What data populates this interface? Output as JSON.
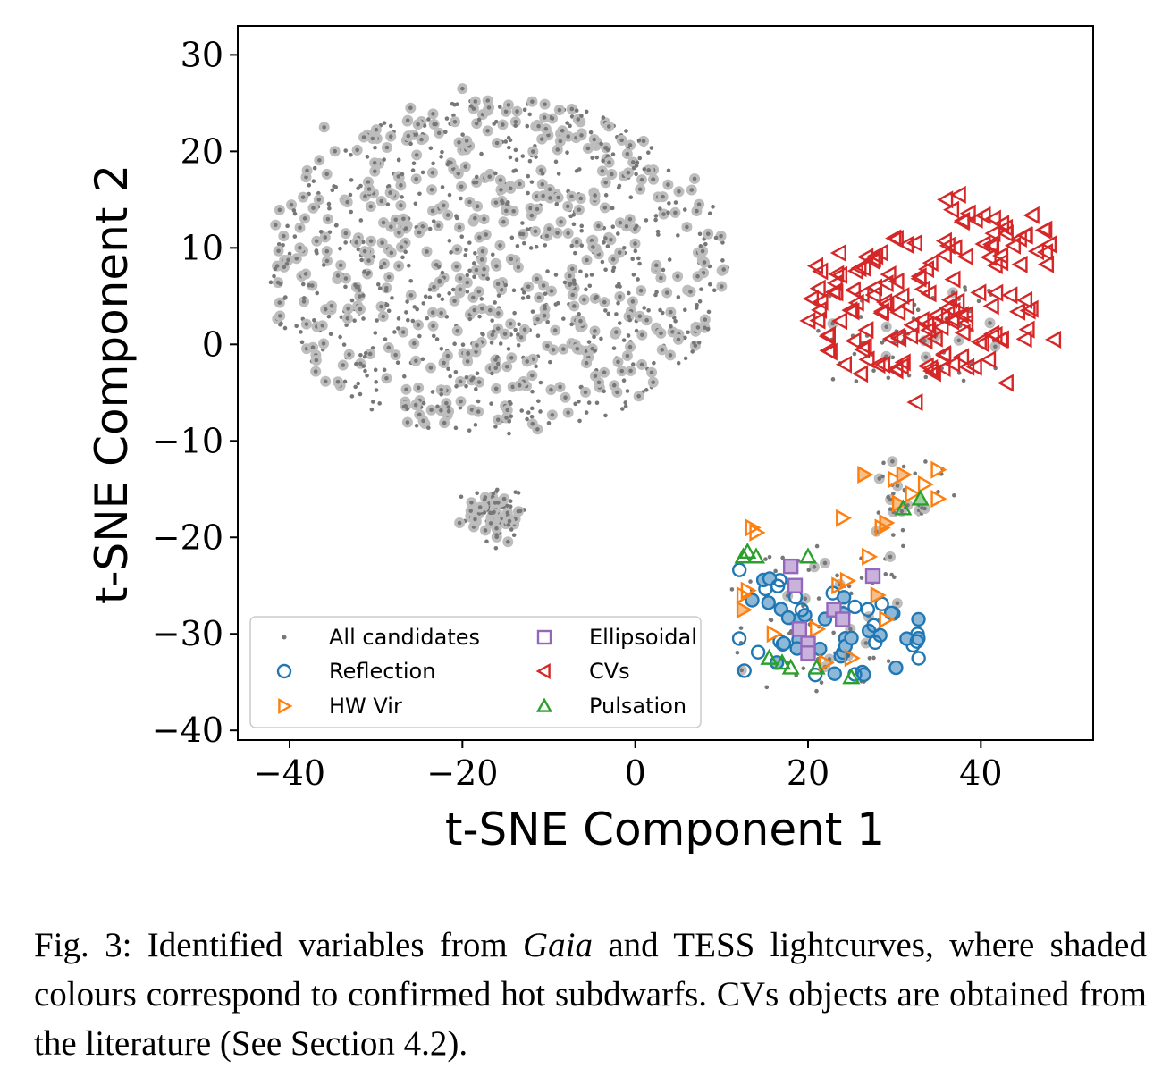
{
  "chart_data": {
    "type": "scatter",
    "xlabel": "t-SNE Component 1",
    "ylabel": "t-SNE Component 2",
    "xlim": [
      -46,
      53
    ],
    "ylim": [
      -41,
      33
    ],
    "xticks": [
      -40,
      -20,
      0,
      20,
      40
    ],
    "yticks": [
      -40,
      -30,
      -20,
      -10,
      0,
      10,
      20,
      30
    ],
    "xtick_labels": [
      "−40",
      "−20",
      "0",
      "20",
      "40"
    ],
    "ytick_labels": [
      "−40",
      "−30",
      "−20",
      "−10",
      "0",
      "10",
      "20",
      "30"
    ],
    "grid": false,
    "legend_position": "lower-left",
    "legend": {
      "col1": [
        "All candidates",
        "Reflection",
        "HW Vir"
      ],
      "col2": [
        "Ellipsoidal",
        "CVs",
        "Pulsation"
      ]
    },
    "series": [
      {
        "name": "All candidates",
        "marker": "dot",
        "color": "#777777",
        "points": "dense cloud of candidates: main cluster x≈−42 to 11, y≈−10 to 27; branch x≈−20 to −10, y≈−15 to −21; plus points under labelled groups"
      },
      {
        "name": "Reflection",
        "marker": "circle",
        "color": "#1f77b4",
        "x_range": [
          12,
          33
        ],
        "y_range": [
          -35,
          -21
        ]
      },
      {
        "name": "HW Vir",
        "marker": "triangle-right",
        "color": "#ff7f0e",
        "x_range": [
          12,
          36
        ],
        "y_range": [
          -34,
          -13
        ]
      },
      {
        "name": "Ellipsoidal",
        "marker": "square",
        "color": "#9467bd",
        "x": [
          18,
          18.5,
          19,
          20,
          20,
          23,
          24,
          27.5
        ],
        "y": [
          -23,
          -25,
          -29.5,
          -31,
          -32,
          -27.5,
          -28.5,
          -24
        ]
      },
      {
        "name": "CVs",
        "marker": "triangle-left",
        "color": "#d62728",
        "x_range": [
          20,
          49
        ],
        "y_range": [
          -6,
          16
        ]
      },
      {
        "name": "Pulsation",
        "marker": "triangle-up",
        "color": "#2ca02c",
        "x": [
          12.5,
          13,
          14,
          15.5,
          17,
          18,
          20,
          21,
          25,
          33,
          31
        ],
        "y": [
          -22,
          -21.5,
          -22,
          -32.5,
          -33,
          -33.5,
          -22,
          -33.5,
          -34.5,
          -16,
          -17
        ]
      }
    ]
  },
  "caption": {
    "part1": "Fig. 3: Identified variables from ",
    "emph": "Gaia",
    "part2": " and TESS lightcurves, where shaded colours correspond to confirmed hot subdwarfs. CVs objects are obtained from the literature (See Section 4.2)."
  }
}
